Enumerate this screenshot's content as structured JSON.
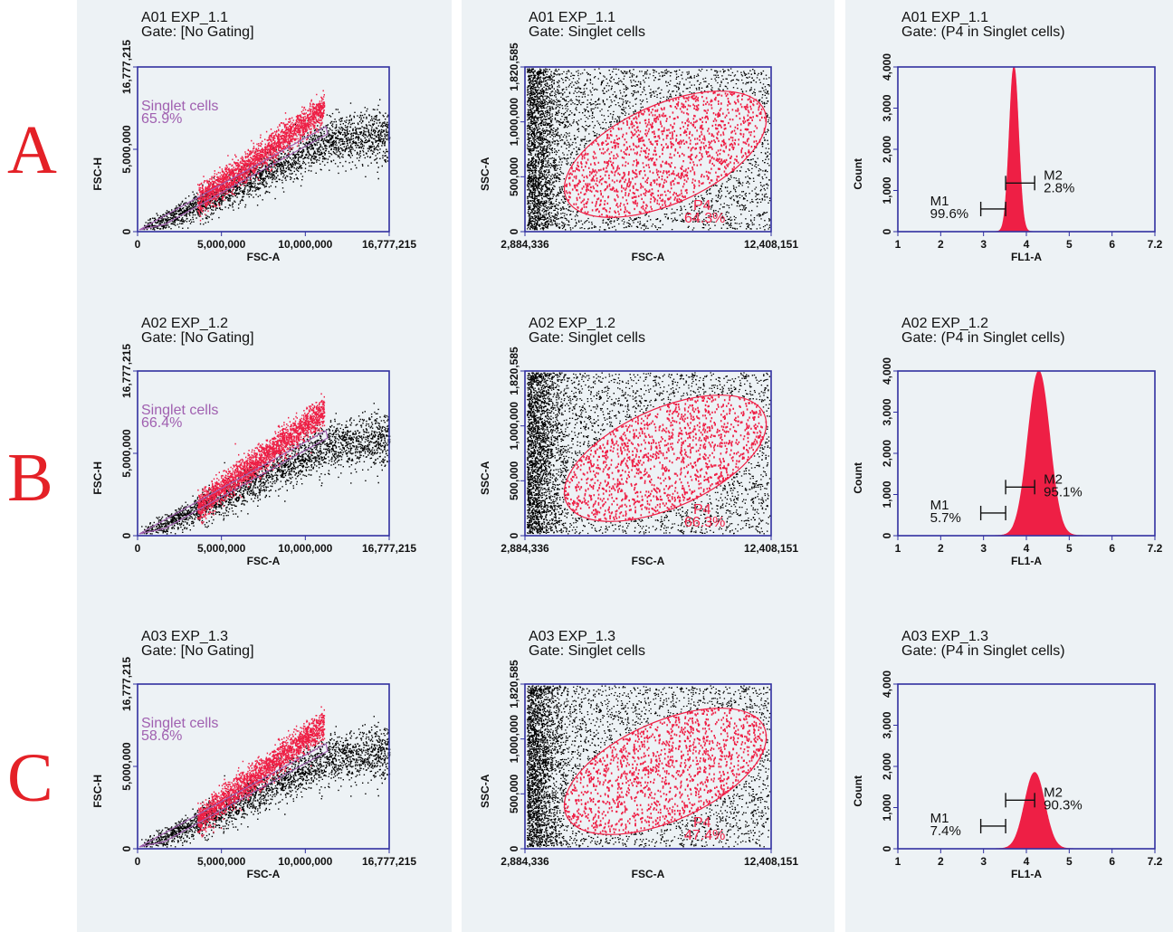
{
  "row_labels": [
    "A",
    "B",
    "C"
  ],
  "colors": {
    "gated": "#ee1f45",
    "ungated": "#000000",
    "singlet_gate": "#a060b0",
    "p4_gate": "#ee1f45",
    "axis": "#3030a0",
    "histogram": "#ee1f45",
    "background": "#edf2f5"
  },
  "chart_data": [
    {
      "type": "scatter",
      "row": "A",
      "title": "A01 EXP_1.1",
      "gate": "Gate: [No Gating]",
      "xlabel": "FSC-A",
      "ylabel": "FSC-H",
      "x_ticks": [
        "0",
        "5,000,000",
        "10,000,000",
        "16,777,215"
      ],
      "y_ticks": [
        "0",
        "5,000,000",
        "16,777,215"
      ],
      "xlim": [
        0,
        16777215
      ],
      "ylim": [
        0,
        16777215
      ],
      "region": "Singlet cells",
      "region_pct": "65.9%"
    },
    {
      "type": "scatter",
      "row": "A",
      "title": "A01 EXP_1.1",
      "gate": "Gate: Singlet cells",
      "xlabel": "FSC-A",
      "ylabel": "SSC-A",
      "x_ticks": [
        "2,884,336",
        "12,408,151"
      ],
      "y_ticks": [
        "0",
        "500,000",
        "1,000,000",
        "1,820,585"
      ],
      "xlim": [
        2884336,
        12408151
      ],
      "ylim": [
        0,
        1820585
      ],
      "region": "P4",
      "region_pct": "64.3%"
    },
    {
      "type": "histogram",
      "row": "A",
      "title": "A01 EXP_1.1",
      "gate": "Gate: (P4 in Singlet cells)",
      "xlabel": "FL1-A",
      "ylabel": "Count",
      "x_ticks": [
        "10^1",
        "10^2",
        "10^3",
        "10^4",
        "10^5",
        "10^6",
        "10^7.2"
      ],
      "y_ticks": [
        "0",
        "1,000",
        "2,000",
        "3,000",
        "4,000"
      ],
      "xlim": [
        1,
        7.2
      ],
      "ylim": [
        0,
        4000
      ],
      "x_scale": "log",
      "peak_log10": 3.8,
      "peak_count": 4000,
      "spread": 0.11,
      "markers": [
        {
          "name": "M1",
          "pct": "99.6%",
          "range": [
            3.0,
            3.6
          ],
          "level": 550
        },
        {
          "name": "M2",
          "pct": "2.8%",
          "range": [
            3.6,
            4.3
          ],
          "level": 1180
        }
      ]
    },
    {
      "type": "scatter",
      "row": "B",
      "title": "A02 EXP_1.2",
      "gate": "Gate: [No Gating]",
      "xlabel": "FSC-A",
      "ylabel": "FSC-H",
      "x_ticks": [
        "0",
        "5,000,000",
        "10,000,000",
        "16,777,215"
      ],
      "y_ticks": [
        "0",
        "5,000,000",
        "16,777,215"
      ],
      "xlim": [
        0,
        16777215
      ],
      "ylim": [
        0,
        16777215
      ],
      "region": "Singlet cells",
      "region_pct": "66.4%"
    },
    {
      "type": "scatter",
      "row": "B",
      "title": "A02 EXP_1.2",
      "gate": "Gate: Singlet cells",
      "xlabel": "FSC-A",
      "ylabel": "SSC-A",
      "x_ticks": [
        "2,884,336",
        "12,408,151"
      ],
      "y_ticks": [
        "0",
        "500,000",
        "1,000,000",
        "1,820,585"
      ],
      "xlim": [
        2884336,
        12408151
      ],
      "ylim": [
        0,
        1820585
      ],
      "region": "P4",
      "region_pct": "66.3%"
    },
    {
      "type": "histogram",
      "row": "B",
      "title": "A02 EXP_1.2",
      "gate": "Gate: (P4 in Singlet cells)",
      "xlabel": "FL1-A",
      "ylabel": "Count",
      "x_ticks": [
        "10^1",
        "10^2",
        "10^3",
        "10^4",
        "10^5",
        "10^6",
        "10^7.2"
      ],
      "y_ticks": [
        "0",
        "1,000",
        "2,000",
        "3,000",
        "4,000"
      ],
      "xlim": [
        1,
        7.2
      ],
      "ylim": [
        0,
        4000
      ],
      "x_scale": "log",
      "peak_log10": 4.4,
      "peak_count": 4000,
      "spread": 0.26,
      "markers": [
        {
          "name": "M1",
          "pct": "5.7%",
          "range": [
            3.0,
            3.6
          ],
          "level": 550
        },
        {
          "name": "M2",
          "pct": "95.1%",
          "range": [
            3.6,
            4.3
          ],
          "level": 1180
        }
      ]
    },
    {
      "type": "scatter",
      "row": "C",
      "title": "A03 EXP_1.3",
      "gate": "Gate: [No Gating]",
      "xlabel": "FSC-A",
      "ylabel": "FSC-H",
      "x_ticks": [
        "0",
        "5,000,000",
        "10,000,000",
        "16,777,215"
      ],
      "y_ticks": [
        "0",
        "5,000,000",
        "16,777,215"
      ],
      "xlim": [
        0,
        16777215
      ],
      "ylim": [
        0,
        16777215
      ],
      "region": "Singlet cells",
      "region_pct": "58.6%"
    },
    {
      "type": "scatter",
      "row": "C",
      "title": "A03 EXP_1.3",
      "gate": "Gate: Singlet cells",
      "xlabel": "FSC-A",
      "ylabel": "SSC-A",
      "x_ticks": [
        "2,884,336",
        "12,408,151"
      ],
      "y_ticks": [
        "0",
        "500,000",
        "1,000,000",
        "1,820,585"
      ],
      "xlim": [
        2884336,
        12408151
      ],
      "ylim": [
        0,
        1820585
      ],
      "region": "P4",
      "region_pct": "47.4%"
    },
    {
      "type": "histogram",
      "row": "C",
      "title": "A03 EXP_1.3",
      "gate": "Gate: (P4 in Singlet cells)",
      "xlabel": "FL1-A",
      "ylabel": "Count",
      "x_ticks": [
        "10^1",
        "10^2",
        "10^3",
        "10^4",
        "10^5",
        "10^6",
        "10^7.2"
      ],
      "y_ticks": [
        "0",
        "1,000",
        "2,000",
        "3,000",
        "4,000"
      ],
      "xlim": [
        1,
        7.2
      ],
      "ylim": [
        0,
        4000
      ],
      "x_scale": "log",
      "peak_log10": 4.3,
      "peak_count": 1850,
      "spread": 0.24,
      "markers": [
        {
          "name": "M1",
          "pct": "7.4%",
          "range": [
            3.0,
            3.6
          ],
          "level": 550
        },
        {
          "name": "M2",
          "pct": "90.3%",
          "range": [
            3.6,
            4.3
          ],
          "level": 1180
        }
      ]
    }
  ]
}
